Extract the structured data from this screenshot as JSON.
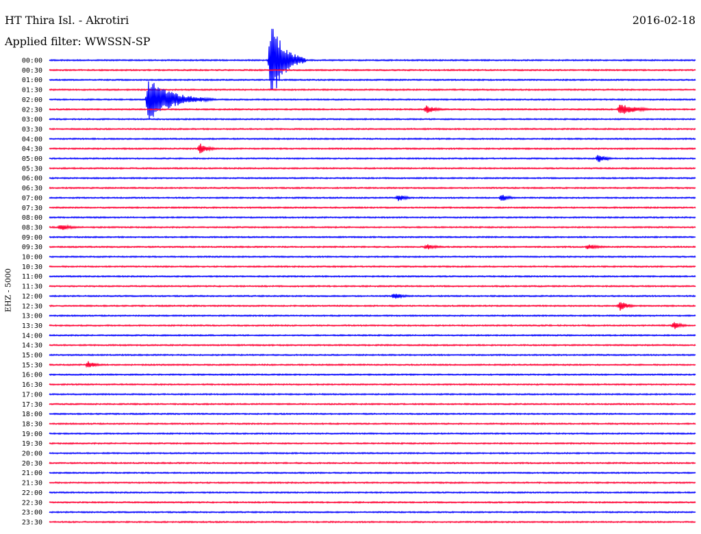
{
  "header": {
    "station": "HT Thira Isl. - Akrotiri",
    "date": "2016-02-18",
    "filter": "Applied filter: WWSSN-SP"
  },
  "channel_label": "EHZ - 5000",
  "colors": {
    "even_hour": "#0000ff",
    "half_hour": "#ff0033"
  },
  "chart_data": {
    "type": "line",
    "title": "HT Thira Isl. - Akrotiri",
    "date": "2016-02-18",
    "filter": "WWSSN-SP",
    "channel": "EHZ - 5000",
    "row_minutes": 30,
    "tick_labels": [
      "00:00",
      "00:30",
      "01:00",
      "01:30",
      "02:00",
      "02:30",
      "03:00",
      "03:30",
      "04:00",
      "04:30",
      "05:00",
      "05:30",
      "06:00",
      "06:30",
      "07:00",
      "07:30",
      "08:00",
      "08:30",
      "09:00",
      "09:30",
      "10:00",
      "10:30",
      "11:00",
      "11:30",
      "12:00",
      "12:30",
      "13:00",
      "13:30",
      "14:00",
      "14:30",
      "15:00",
      "15:30",
      "16:00",
      "16:30",
      "17:00",
      "17:30",
      "18:00",
      "18:30",
      "19:00",
      "19:30",
      "20:00",
      "20:30",
      "21:00",
      "21:30",
      "22:00",
      "22:30",
      "23:00",
      "23:30"
    ],
    "events": [
      {
        "row": 0,
        "minute": 10.3,
        "amplitude": 9.0,
        "duration_min": 1.6
      },
      {
        "row": 4,
        "minute": 4.6,
        "amplitude": 4.5,
        "duration_min": 3.0
      },
      {
        "row": 5,
        "minute": 26.5,
        "amplitude": 1.2,
        "duration_min": 2.0
      },
      {
        "row": 5,
        "minute": 17.5,
        "amplitude": 0.8,
        "duration_min": 1.5
      },
      {
        "row": 9,
        "minute": 7.0,
        "amplitude": 1.2,
        "duration_min": 1.0
      },
      {
        "row": 10,
        "minute": 25.5,
        "amplitude": 1.0,
        "duration_min": 1.0
      },
      {
        "row": 14,
        "minute": 16.2,
        "amplitude": 0.8,
        "duration_min": 1.0
      },
      {
        "row": 14,
        "minute": 21.0,
        "amplitude": 0.8,
        "duration_min": 1.0
      },
      {
        "row": 17,
        "minute": 0.5,
        "amplitude": 0.7,
        "duration_min": 1.5
      },
      {
        "row": 19,
        "minute": 17.5,
        "amplitude": 0.6,
        "duration_min": 1.5
      },
      {
        "row": 19,
        "minute": 25.0,
        "amplitude": 0.6,
        "duration_min": 1.5
      },
      {
        "row": 24,
        "minute": 16.0,
        "amplitude": 0.7,
        "duration_min": 1.2
      },
      {
        "row": 25,
        "minute": 26.5,
        "amplitude": 1.1,
        "duration_min": 1.0
      },
      {
        "row": 27,
        "minute": 29.0,
        "amplitude": 0.8,
        "duration_min": 1.0
      },
      {
        "row": 31,
        "minute": 1.8,
        "amplitude": 0.8,
        "duration_min": 1.0
      }
    ]
  }
}
